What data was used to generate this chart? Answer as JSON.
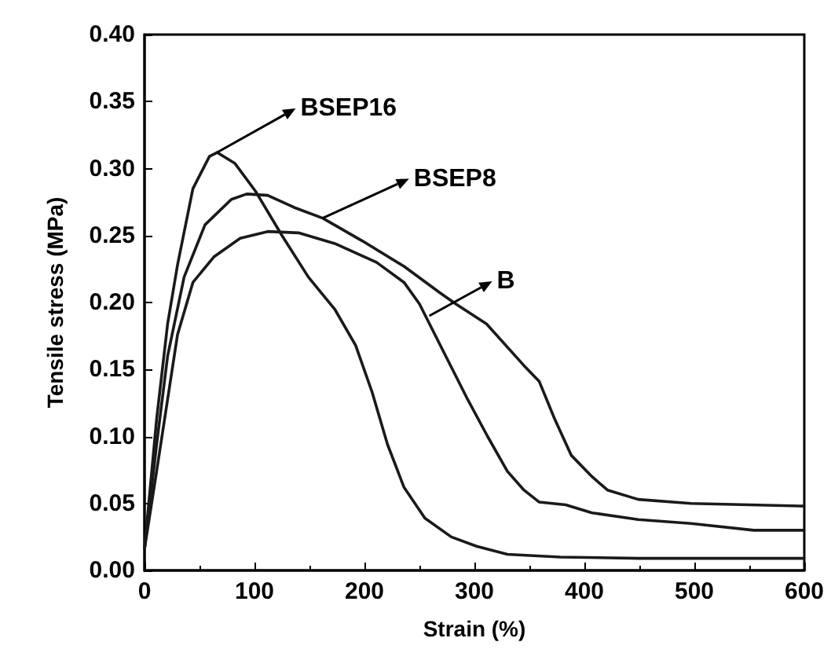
{
  "chart_data": {
    "type": "line",
    "xlabel": "Strain (%)",
    "ylabel": "Tensile stress (MPa)",
    "xlim": [
      0,
      600
    ],
    "xticks": [
      0,
      100,
      200,
      300,
      400,
      500,
      600
    ],
    "ylim": [
      0,
      0.4
    ],
    "yticks": [
      {
        "value": 0,
        "label": "0.00"
      },
      {
        "value": 0.05,
        "label": "0.05"
      },
      {
        "value": 0.1,
        "label": "0.10"
      },
      {
        "value": 0.15,
        "label": "0.15"
      },
      {
        "value": 0.2,
        "label": "0.20"
      },
      {
        "value": 0.25,
        "label": "0.25"
      },
      {
        "value": 0.3,
        "label": "0.30"
      },
      {
        "value": 0.35,
        "label": "0.35"
      },
      {
        "value": 0.4,
        "label": "0.40"
      }
    ],
    "marker": "none",
    "line_style": "solid",
    "series": [
      {
        "color": "#1a1a1a",
        "x": [
          0,
          11,
          21,
          30,
          44,
          59,
          66,
          82,
          101,
          125,
          149,
          173,
          192,
          207,
          221,
          236,
          255,
          279,
          302,
          330,
          378,
          450,
          600
        ],
        "values": [
          0.016,
          0.113,
          0.184,
          0.228,
          0.285,
          0.309,
          0.312,
          0.304,
          0.283,
          0.25,
          0.219,
          0.195,
          0.168,
          0.133,
          0.094,
          0.062,
          0.039,
          0.025,
          0.018,
          0.012,
          0.01,
          0.009,
          0.009
        ]
      },
      {
        "color": "#1a1a1a",
        "x": [
          0,
          11,
          21,
          36,
          55,
          79,
          93,
          112,
          136,
          162,
          198,
          236,
          269,
          283,
          311,
          345,
          359,
          373,
          388,
          407,
          421,
          449,
          497,
          600
        ],
        "values": [
          0.016,
          0.094,
          0.16,
          0.219,
          0.258,
          0.277,
          0.281,
          0.28,
          0.271,
          0.263,
          0.246,
          0.227,
          0.207,
          0.199,
          0.184,
          0.153,
          0.141,
          0.113,
          0.086,
          0.07,
          0.06,
          0.053,
          0.05,
          0.048
        ]
      },
      {
        "color": "#1a1a1a",
        "x": [
          0,
          11,
          30,
          44,
          63,
          87,
          112,
          140,
          173,
          211,
          236,
          250,
          269,
          293,
          312,
          330,
          345,
          359,
          383,
          407,
          449,
          497,
          554,
          600
        ],
        "values": [
          0.016,
          0.074,
          0.176,
          0.215,
          0.234,
          0.248,
          0.253,
          0.252,
          0.244,
          0.23,
          0.215,
          0.199,
          0.168,
          0.129,
          0.1,
          0.074,
          0.06,
          0.051,
          0.049,
          0.043,
          0.038,
          0.035,
          0.03,
          0.03
        ]
      }
    ],
    "annotations": [
      {
        "text": "BSEP16",
        "x": 66,
        "y": 0.312
      },
      {
        "text": "BSEP8",
        "x": 162,
        "y": 0.263
      },
      {
        "text": "B",
        "x": 259,
        "y": 0.19
      }
    ]
  }
}
